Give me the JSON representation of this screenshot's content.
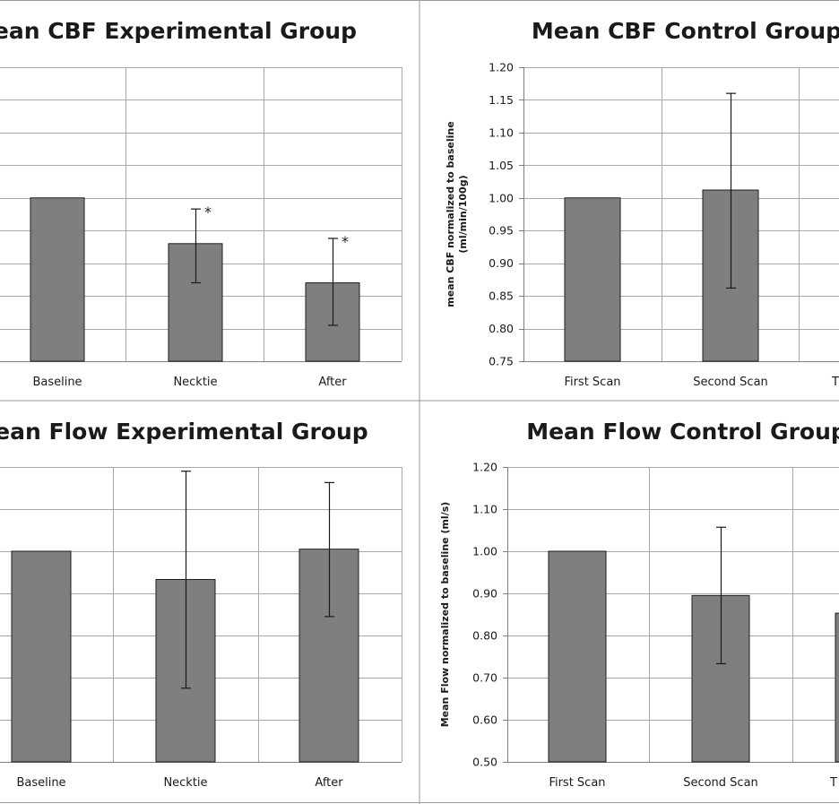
{
  "chart_data": [
    {
      "type": "bar",
      "title": "Mean CBF Experimental Group",
      "ylabel": "",
      "ylim": [
        0.75,
        1.2
      ],
      "yticks": [],
      "categories": [
        "Baseline",
        "Necktie",
        "After"
      ],
      "values": [
        1.0,
        0.93,
        0.87
      ],
      "err_low": [
        1.0,
        0.87,
        0.805
      ],
      "err_high": [
        1.0,
        0.983,
        0.938
      ],
      "annotations": [
        "",
        "*",
        "*"
      ]
    },
    {
      "type": "bar",
      "title": "Mean CBF Control Group",
      "ylabel": "mean CBF normalized to baseline\n(ml/min/100g)",
      "ylim": [
        0.75,
        1.2
      ],
      "yticks": [
        "0.75",
        "0.80",
        "0.85",
        "0.90",
        "0.95",
        "1.00",
        "1.05",
        "1.10",
        "1.15",
        "1.20"
      ],
      "categories": [
        "First Scan",
        "Second Scan",
        "T"
      ],
      "values": [
        1.0,
        1.012,
        null
      ],
      "err_low": [
        1.0,
        0.862,
        null
      ],
      "err_high": [
        1.0,
        1.16,
        null
      ],
      "annotations": [
        "",
        "",
        ""
      ]
    },
    {
      "type": "bar",
      "title": "Mean Flow Experimental Group",
      "ylabel": "",
      "ylim": [
        0.5,
        1.2
      ],
      "yticks": [],
      "categories": [
        "Baseline",
        "Necktie",
        "After"
      ],
      "values": [
        1.0,
        0.933,
        1.005
      ],
      "err_low": [
        1.0,
        0.675,
        0.845
      ],
      "err_high": [
        1.0,
        1.19,
        1.163
      ],
      "annotations": [
        "",
        "",
        ""
      ]
    },
    {
      "type": "bar",
      "title": "Mean Flow Control Group",
      "ylabel": "Mean Flow normalized to baseline (ml/s)",
      "ylim": [
        0.5,
        1.2
      ],
      "yticks": [
        "0.50",
        "0.60",
        "0.70",
        "0.80",
        "0.90",
        "1.00",
        "1.10",
        "1.20"
      ],
      "categories": [
        "First Scan",
        "Second Scan",
        "T"
      ],
      "values": [
        1.0,
        0.895,
        0.853
      ],
      "err_low": [
        1.0,
        0.733,
        null
      ],
      "err_high": [
        1.0,
        1.057,
        null
      ],
      "annotations": [
        "",
        "",
        ""
      ]
    }
  ]
}
